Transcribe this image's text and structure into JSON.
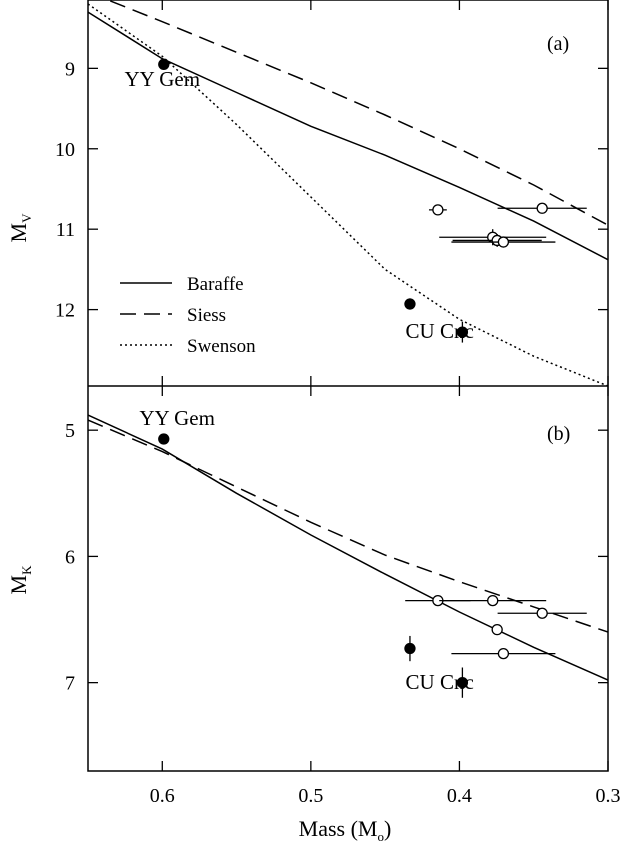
{
  "chart_data": [
    {
      "id": "a",
      "type": "scatter",
      "panel_label": "(a)",
      "ylabel": "M",
      "ylabel_sub": "V",
      "xlim": [
        0.65,
        0.3
      ],
      "ylim": [
        8.15,
        12.95
      ],
      "y_inverted": true,
      "yticks": [
        9,
        10,
        11,
        12
      ],
      "legend": {
        "placement": "lower-left",
        "entries": [
          {
            "label": "Baraffe",
            "style": "solid"
          },
          {
            "label": "Siess",
            "style": "dashed"
          },
          {
            "label": "Swenson",
            "style": "dotted"
          }
        ]
      },
      "models": [
        {
          "name": "Baraffe",
          "style": "solid",
          "points": [
            [
              0.65,
              8.3
            ],
            [
              0.6,
              8.88
            ],
            [
              0.55,
              9.3
            ],
            [
              0.5,
              9.72
            ],
            [
              0.45,
              10.08
            ],
            [
              0.4,
              10.48
            ],
            [
              0.35,
              10.9
            ],
            [
              0.3,
              11.38
            ]
          ]
        },
        {
          "name": "Siess",
          "style": "dashed",
          "points": [
            [
              0.65,
              8.05
            ],
            [
              0.6,
              8.42
            ],
            [
              0.55,
              8.8
            ],
            [
              0.5,
              9.18
            ],
            [
              0.45,
              9.58
            ],
            [
              0.4,
              10.0
            ],
            [
              0.35,
              10.45
            ],
            [
              0.3,
              10.95
            ]
          ]
        },
        {
          "name": "Swenson",
          "style": "dotted",
          "points": [
            [
              0.65,
              8.2
            ],
            [
              0.6,
              8.85
            ],
            [
              0.55,
              9.7
            ],
            [
              0.5,
              10.6
            ],
            [
              0.45,
              11.5
            ],
            [
              0.4,
              12.12
            ],
            [
              0.35,
              12.58
            ],
            [
              0.3,
              12.95
            ]
          ]
        }
      ],
      "points": [
        {
          "mass": 0.599,
          "mag": 8.95,
          "filled": true,
          "xerr": 0,
          "yerr": 0
        },
        {
          "mass": 0.4333,
          "mag": 11.93,
          "filled": true,
          "xerr": 0,
          "yerr": 0.07
        },
        {
          "mass": 0.398,
          "mag": 12.28,
          "filled": true,
          "xerr": 0,
          "yerr": 0.13
        },
        {
          "mass": 0.4145,
          "mag": 10.76,
          "filled": false,
          "xerr": 0.006,
          "yerr": 0
        },
        {
          "mass": 0.3443,
          "mag": 10.74,
          "filled": false,
          "xerr": 0.03,
          "yerr": 0
        },
        {
          "mass": 0.3776,
          "mag": 11.1,
          "filled": false,
          "xerr": 0.036,
          "yerr": 0.1
        },
        {
          "mass": 0.3746,
          "mag": 11.14,
          "filled": false,
          "xerr": 0.03,
          "yerr": 0.08
        },
        {
          "mass": 0.3704,
          "mag": 11.16,
          "filled": false,
          "xerr": 0.035,
          "yerr": 0
        }
      ],
      "annotations": [
        {
          "text": "YY Gem",
          "mass": 0.6,
          "mag": 9.22
        },
        {
          "text": "CU Cnc",
          "mass": 0.4133,
          "mag": 12.35
        }
      ]
    },
    {
      "id": "b",
      "type": "scatter",
      "panel_label": "(b)",
      "ylabel": "M",
      "ylabel_sub": "K",
      "xlim": [
        0.65,
        0.3
      ],
      "ylim": [
        4.65,
        7.7
      ],
      "y_inverted": true,
      "yticks": [
        5,
        6,
        7
      ],
      "models": [
        {
          "name": "Baraffe",
          "style": "solid",
          "points": [
            [
              0.65,
              4.88
            ],
            [
              0.6,
              5.15
            ],
            [
              0.55,
              5.5
            ],
            [
              0.5,
              5.83
            ],
            [
              0.45,
              6.14
            ],
            [
              0.4,
              6.44
            ],
            [
              0.35,
              6.72
            ],
            [
              0.3,
              6.98
            ]
          ]
        },
        {
          "name": "Siess",
          "style": "dashed",
          "points": [
            [
              0.65,
              4.92
            ],
            [
              0.6,
              5.17
            ],
            [
              0.55,
              5.45
            ],
            [
              0.5,
              5.73
            ],
            [
              0.45,
              5.99
            ],
            [
              0.4,
              6.2
            ],
            [
              0.35,
              6.4
            ],
            [
              0.3,
              6.6
            ]
          ]
        }
      ],
      "points": [
        {
          "mass": 0.599,
          "mag": 5.07,
          "filled": true,
          "xerr": 0,
          "yerr": 0
        },
        {
          "mass": 0.4333,
          "mag": 6.73,
          "filled": true,
          "xerr": 0,
          "yerr": 0.1
        },
        {
          "mass": 0.398,
          "mag": 7.0,
          "filled": true,
          "xerr": 0,
          "yerr": 0.12
        },
        {
          "mass": 0.4145,
          "mag": 6.35,
          "filled": false,
          "xerr": 0.022,
          "yerr": 0
        },
        {
          "mass": 0.3776,
          "mag": 6.35,
          "filled": false,
          "xerr": 0.036,
          "yerr": 0
        },
        {
          "mass": 0.3443,
          "mag": 6.45,
          "filled": false,
          "xerr": 0.03,
          "yerr": 0
        },
        {
          "mass": 0.3746,
          "mag": 6.58,
          "filled": false,
          "xerr": 0,
          "yerr": 0
        },
        {
          "mass": 0.3704,
          "mag": 6.77,
          "filled": false,
          "xerr": 0.035,
          "yerr": 0
        }
      ],
      "annotations": [
        {
          "text": "YY Gem",
          "mass": 0.59,
          "mag": 4.96
        },
        {
          "text": "CU Cnc",
          "mass": 0.4133,
          "mag": 7.05
        }
      ]
    }
  ],
  "shared_xaxis": {
    "xlabel": "Mass (M",
    "xlabel_sub": "o",
    "xlabel_close": ")",
    "xticks": [
      0.6,
      0.5,
      0.4,
      0.3
    ],
    "xtick_labels": [
      "0.6",
      "0.5",
      "0.4",
      "0.3"
    ]
  }
}
